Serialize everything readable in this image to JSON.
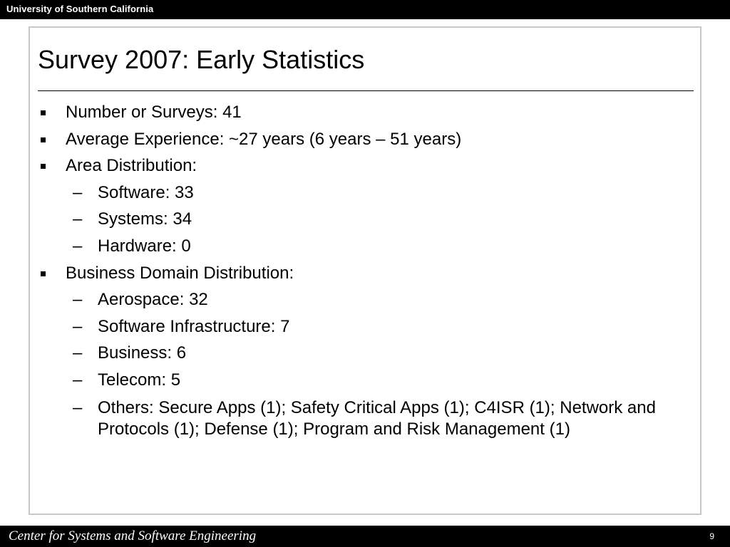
{
  "header": {
    "organization": "University of Southern California"
  },
  "slide": {
    "title": "Survey 2007: Early Statistics",
    "items": [
      {
        "level": 1,
        "text": "Number or Surveys: 41"
      },
      {
        "level": 1,
        "text": "Average Experience: ~27 years (6 years – 51 years)"
      },
      {
        "level": 1,
        "text": "Area Distribution:"
      },
      {
        "level": 2,
        "text": "Software: 33"
      },
      {
        "level": 2,
        "text": "Systems: 34"
      },
      {
        "level": 2,
        "text": "Hardware: 0"
      },
      {
        "level": 1,
        "text": "Business Domain Distribution:"
      },
      {
        "level": 2,
        "text": "Aerospace: 32"
      },
      {
        "level": 2,
        "text": "Software Infrastructure: 7"
      },
      {
        "level": 2,
        "text": "Business: 6"
      },
      {
        "level": 2,
        "text": "Telecom: 5"
      },
      {
        "level": 2,
        "text": "Others: Secure Apps (1); Safety Critical Apps (1); C4ISR (1); Network and Protocols (1); Defense (1); Program and Risk Management (1)"
      }
    ],
    "level2_marker": "–"
  },
  "footer": {
    "center_name": "Center for Systems and Software Engineering",
    "page_number": "9"
  },
  "colors": {
    "bars": "#000000",
    "frame_border": "#c8c8c8",
    "text": "#000000"
  }
}
